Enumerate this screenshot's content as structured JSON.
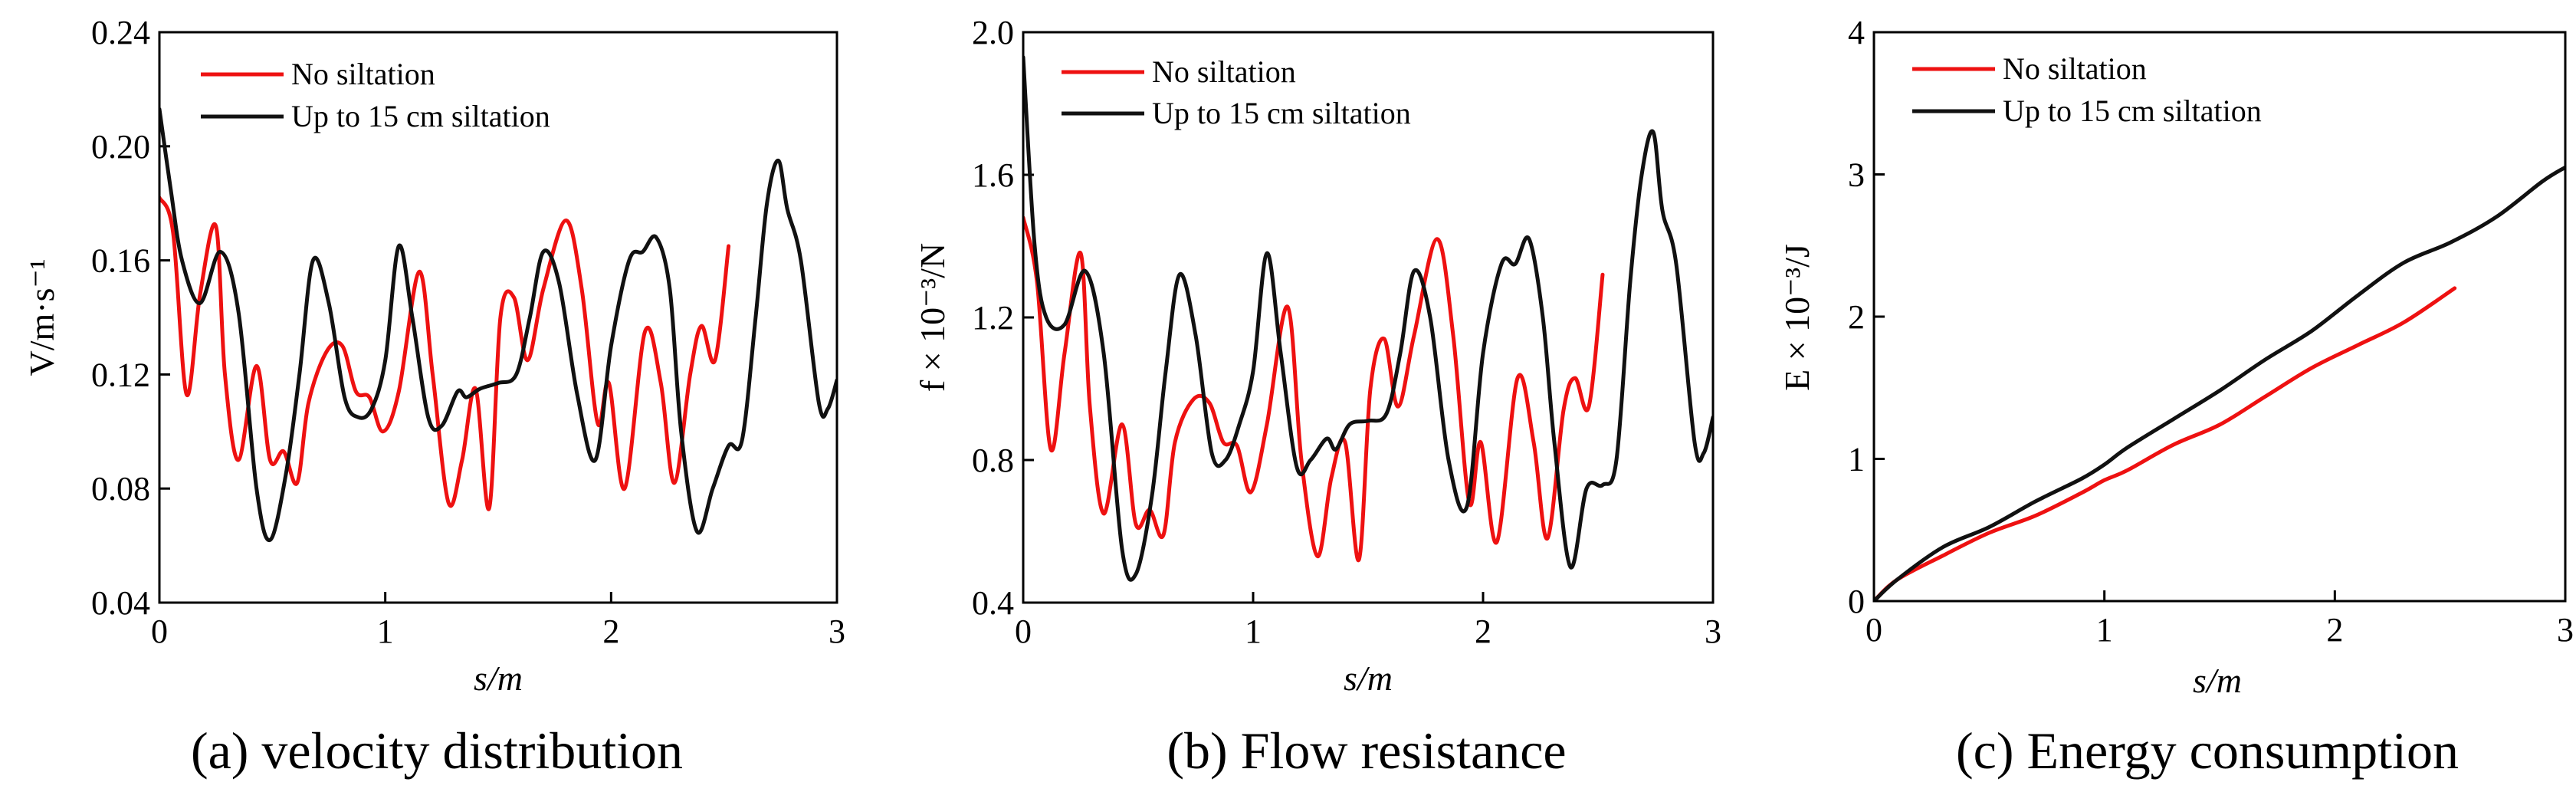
{
  "chart_data": [
    {
      "type": "line",
      "caption": "(a) velocity distribution",
      "xlabel": "s/m",
      "ylabel": "V/m·s⁻¹",
      "xlim": [
        0,
        3
      ],
      "ylim": [
        0.04,
        0.24
      ],
      "xticks": [
        0,
        1,
        2,
        3
      ],
      "xtick_labels": [
        "0",
        "1",
        "2",
        "3"
      ],
      "yticks": [
        0.04,
        0.08,
        0.12,
        0.16,
        0.2,
        0.24
      ],
      "ytick_labels": [
        "0.04",
        "0.08",
        "0.12",
        "0.16",
        "0.20",
        "0.24"
      ],
      "legend_position": "top-left",
      "series": [
        {
          "name": "No siltation",
          "color": "#ee1111",
          "x": [
            0,
            0.06,
            0.12,
            0.18,
            0.25,
            0.29,
            0.35,
            0.43,
            0.49,
            0.55,
            0.61,
            0.66,
            0.74,
            0.81,
            0.87,
            0.93,
            0.99,
            1.06,
            1.15,
            1.21,
            1.28,
            1.34,
            1.4,
            1.46,
            1.51,
            1.57,
            1.63,
            1.7,
            1.8,
            1.87,
            1.94,
            1.99,
            2.06,
            2.15,
            2.22,
            2.28,
            2.35,
            2.4,
            2.46,
            2.52
          ],
          "y": [
            0.182,
            0.17,
            0.113,
            0.148,
            0.172,
            0.12,
            0.09,
            0.123,
            0.09,
            0.093,
            0.082,
            0.11,
            0.128,
            0.13,
            0.114,
            0.112,
            0.1,
            0.114,
            0.156,
            0.12,
            0.075,
            0.09,
            0.115,
            0.073,
            0.14,
            0.147,
            0.125,
            0.15,
            0.174,
            0.15,
            0.103,
            0.117,
            0.08,
            0.135,
            0.117,
            0.082,
            0.12,
            0.137,
            0.125,
            0.165
          ]
        },
        {
          "name": "Up to 15 cm siltation",
          "color": "#111111",
          "x": [
            0,
            0.05,
            0.1,
            0.18,
            0.27,
            0.35,
            0.43,
            0.49,
            0.56,
            0.62,
            0.68,
            0.75,
            0.82,
            0.88,
            0.94,
            1.0,
            1.06,
            1.12,
            1.19,
            1.25,
            1.32,
            1.36,
            1.42,
            1.5,
            1.58,
            1.64,
            1.7,
            1.77,
            1.85,
            1.93,
            2.0,
            2.08,
            2.14,
            2.2,
            2.26,
            2.31,
            2.38,
            2.45,
            2.52,
            2.58,
            2.64,
            2.69,
            2.74,
            2.78,
            2.84,
            2.92,
            2.96,
            3.0
          ],
          "y": [
            0.213,
            0.185,
            0.16,
            0.145,
            0.163,
            0.142,
            0.08,
            0.062,
            0.085,
            0.12,
            0.16,
            0.145,
            0.112,
            0.105,
            0.108,
            0.125,
            0.165,
            0.14,
            0.105,
            0.102,
            0.114,
            0.112,
            0.115,
            0.117,
            0.12,
            0.14,
            0.163,
            0.152,
            0.113,
            0.09,
            0.13,
            0.16,
            0.163,
            0.168,
            0.15,
            0.1,
            0.065,
            0.08,
            0.095,
            0.097,
            0.14,
            0.18,
            0.195,
            0.178,
            0.16,
            0.11,
            0.108,
            0.118
          ]
        }
      ]
    },
    {
      "type": "line",
      "caption": "(b) Flow resistance",
      "xlabel": "s/m",
      "ylabel": "f × 10⁻³/N",
      "xlim": [
        0,
        3
      ],
      "ylim": [
        0.4,
        2.0
      ],
      "xticks": [
        0,
        1,
        2,
        3
      ],
      "xtick_labels": [
        "0",
        "1",
        "2",
        "3"
      ],
      "yticks": [
        0.4,
        0.8,
        1.2,
        1.6,
        2.0
      ],
      "ytick_labels": [
        "0.4",
        "0.8",
        "1.2",
        "1.6",
        "2.0"
      ],
      "legend_position": "top-right",
      "series": [
        {
          "name": "No siltation",
          "color": "#ee1111",
          "x": [
            0,
            0.06,
            0.12,
            0.18,
            0.25,
            0.29,
            0.35,
            0.43,
            0.49,
            0.55,
            0.61,
            0.66,
            0.74,
            0.81,
            0.87,
            0.93,
            0.99,
            1.06,
            1.15,
            1.21,
            1.28,
            1.34,
            1.4,
            1.46,
            1.51,
            1.57,
            1.63,
            1.7,
            1.8,
            1.87,
            1.94,
            1.99,
            2.06,
            2.15,
            2.22,
            2.28,
            2.35,
            2.4,
            2.46,
            2.52
          ],
          "y": [
            1.48,
            1.3,
            0.83,
            1.1,
            1.38,
            0.95,
            0.65,
            0.9,
            0.62,
            0.66,
            0.59,
            0.85,
            0.97,
            0.96,
            0.85,
            0.84,
            0.71,
            0.9,
            1.23,
            0.8,
            0.53,
            0.75,
            0.85,
            0.52,
            1.0,
            1.14,
            0.95,
            1.15,
            1.42,
            1.15,
            0.68,
            0.85,
            0.57,
            1.03,
            0.85,
            0.58,
            0.94,
            1.03,
            0.95,
            1.32
          ]
        },
        {
          "name": "Up to 15 cm siltation",
          "color": "#111111",
          "x": [
            0,
            0.05,
            0.1,
            0.18,
            0.27,
            0.35,
            0.43,
            0.49,
            0.56,
            0.62,
            0.68,
            0.75,
            0.82,
            0.88,
            0.94,
            1.0,
            1.06,
            1.12,
            1.19,
            1.25,
            1.32,
            1.36,
            1.42,
            1.5,
            1.58,
            1.64,
            1.7,
            1.77,
            1.85,
            1.93,
            2.0,
            2.08,
            2.14,
            2.2,
            2.26,
            2.31,
            2.38,
            2.45,
            2.52,
            2.58,
            2.64,
            2.69,
            2.74,
            2.78,
            2.84,
            2.92,
            2.96,
            3.0
          ],
          "y": [
            1.93,
            1.4,
            1.2,
            1.18,
            1.33,
            1.1,
            0.55,
            0.48,
            0.7,
            1.05,
            1.32,
            1.15,
            0.82,
            0.8,
            0.9,
            1.05,
            1.38,
            1.1,
            0.78,
            0.8,
            0.86,
            0.83,
            0.9,
            0.91,
            0.93,
            1.1,
            1.33,
            1.2,
            0.8,
            0.67,
            1.1,
            1.35,
            1.35,
            1.42,
            1.2,
            0.85,
            0.5,
            0.72,
            0.73,
            0.8,
            1.3,
            1.6,
            1.72,
            1.5,
            1.35,
            0.85,
            0.82,
            0.92
          ]
        }
      ]
    },
    {
      "type": "line",
      "caption": "(c) Energy consumption",
      "xlabel": "s/m",
      "ylabel": "E × 10⁻³/J",
      "xlim": [
        0,
        3
      ],
      "ylim": [
        0,
        4
      ],
      "xticks": [
        0,
        1,
        2,
        3
      ],
      "xtick_labels": [
        "0",
        "1",
        "2",
        "3"
      ],
      "yticks": [
        0,
        1,
        2,
        3,
        4
      ],
      "ytick_labels": [
        "0",
        "1",
        "2",
        "3",
        "4"
      ],
      "legend_position": "top-left",
      "series": [
        {
          "name": "No siltation",
          "color": "#ee1111",
          "x": [
            0,
            0.1,
            0.3,
            0.5,
            0.7,
            0.9,
            1.0,
            1.1,
            1.3,
            1.5,
            1.7,
            1.9,
            2.1,
            2.3,
            2.52
          ],
          "y": [
            0,
            0.15,
            0.32,
            0.48,
            0.6,
            0.76,
            0.85,
            0.92,
            1.1,
            1.24,
            1.44,
            1.64,
            1.8,
            1.96,
            2.2
          ]
        },
        {
          "name": "Up to 15 cm siltation",
          "color": "#111111",
          "x": [
            0,
            0.1,
            0.3,
            0.5,
            0.7,
            0.9,
            1.0,
            1.1,
            1.3,
            1.5,
            1.7,
            1.9,
            2.1,
            2.3,
            2.5,
            2.7,
            2.9,
            3.0
          ],
          "y": [
            0,
            0.15,
            0.38,
            0.52,
            0.7,
            0.86,
            0.96,
            1.08,
            1.28,
            1.48,
            1.7,
            1.9,
            2.15,
            2.38,
            2.52,
            2.7,
            2.95,
            3.05
          ]
        }
      ]
    }
  ]
}
